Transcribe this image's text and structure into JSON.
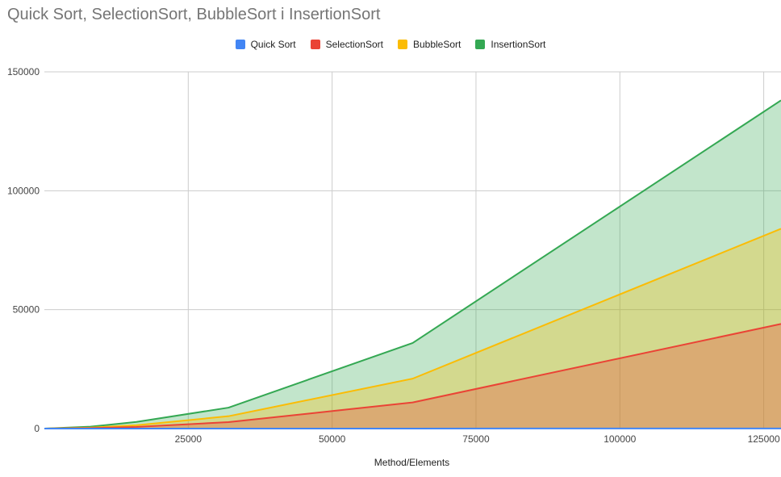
{
  "chart_data": {
    "type": "area",
    "title": "Quick Sort, SelectionSort, BubbleSort i InsertionSort",
    "xlabel": "Method/Elements",
    "ylabel": "",
    "x": [
      0,
      8000,
      16000,
      32000,
      64000,
      128000
    ],
    "xlim": [
      0,
      128000
    ],
    "ylim": [
      0,
      150000
    ],
    "xticks": [
      25000,
      50000,
      75000,
      100000,
      125000
    ],
    "yticks": [
      0,
      50000,
      100000,
      150000
    ],
    "xtick_labels": [
      "25000",
      "50000",
      "75000",
      "100000",
      "125000"
    ],
    "ytick_labels": [
      "0",
      "50000",
      "100000",
      "150000"
    ],
    "grid": true,
    "legend_position": "top",
    "series": [
      {
        "name": "Quick Sort",
        "color": "#4285f4",
        "values": [
          0,
          2,
          5,
          10,
          20,
          40
        ]
      },
      {
        "name": "SelectionSort",
        "color": "#ea4335",
        "values": [
          0,
          200,
          700,
          2700,
          11000,
          44000
        ]
      },
      {
        "name": "BubbleSort",
        "color": "#fbbc04",
        "values": [
          0,
          400,
          1400,
          5200,
          21000,
          84000
        ]
      },
      {
        "name": "InsertionSort",
        "color": "#34a853",
        "values": [
          0,
          800,
          2800,
          8800,
          36000,
          138000
        ]
      }
    ]
  }
}
